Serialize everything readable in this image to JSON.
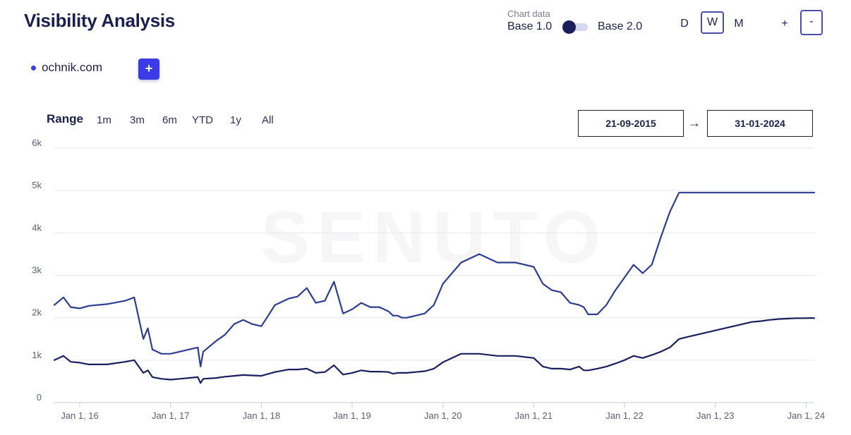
{
  "header": {
    "title": "Visibility Analysis",
    "chart_data_label": "Chart data",
    "base1_label": "Base 1.0",
    "base2_label": "Base 2.0",
    "periods": {
      "d": "D",
      "w": "W",
      "m": "M"
    },
    "selected_period": "W",
    "zoom_in": "+",
    "zoom_out": "-"
  },
  "domains": [
    {
      "name": "ochnik.com",
      "color": "#3b40e0"
    }
  ],
  "add_domain_label": "+",
  "range": {
    "label": "Range",
    "options": [
      "1m",
      "3m",
      "6m",
      "YTD",
      "1y",
      "All"
    ],
    "from": "21-09-2015",
    "to": "31-01-2024",
    "arrow": "→"
  },
  "watermark": "SENUTO",
  "colors": {
    "base1": "#2e3d8f",
    "base2": "#1b1f5e",
    "accent": "#3b3ce6"
  },
  "chart_data": {
    "type": "line",
    "title": "",
    "xlabel": "",
    "ylabel": "",
    "ylim": [
      0,
      6000
    ],
    "grid": true,
    "yticks": [
      {
        "value": 0,
        "label": "0"
      },
      {
        "value": 1000,
        "label": "1k"
      },
      {
        "value": 2000,
        "label": "2k"
      },
      {
        "value": 3000,
        "label": "3k"
      },
      {
        "value": 4000,
        "label": "4k"
      },
      {
        "value": 5000,
        "label": "5k"
      },
      {
        "value": 6000,
        "label": "6k"
      }
    ],
    "xlim": [
      2015.72,
      2024.09
    ],
    "xticks": [
      {
        "value": 2016.0,
        "label": "Jan 1, 16"
      },
      {
        "value": 2017.0,
        "label": "Jan 1, 17"
      },
      {
        "value": 2018.0,
        "label": "Jan 1, 18"
      },
      {
        "value": 2019.0,
        "label": "Jan 1, 19"
      },
      {
        "value": 2020.0,
        "label": "Jan 1, 20"
      },
      {
        "value": 2021.0,
        "label": "Jan 1, 21"
      },
      {
        "value": 2022.0,
        "label": "Jan 1, 22"
      },
      {
        "value": 2023.0,
        "label": "Jan 1, 23"
      },
      {
        "value": 2024.0,
        "label": "Jan 1, 24"
      }
    ],
    "series": [
      {
        "color": "#2e3d8f",
        "x": [
          2015.72,
          2015.82,
          2015.9,
          2016.0,
          2016.1,
          2016.3,
          2016.5,
          2016.6,
          2016.7,
          2016.75,
          2016.8,
          2016.9,
          2017.0,
          2017.1,
          2017.2,
          2017.3,
          2017.33,
          2017.36,
          2017.5,
          2017.6,
          2017.7,
          2017.8,
          2017.9,
          2018.0,
          2018.15,
          2018.3,
          2018.4,
          2018.5,
          2018.6,
          2018.7,
          2018.8,
          2018.9,
          2019.0,
          2019.1,
          2019.2,
          2019.3,
          2019.4,
          2019.45,
          2019.5,
          2019.55,
          2019.6,
          2019.7,
          2019.8,
          2019.9,
          2020.0,
          2020.2,
          2020.4,
          2020.6,
          2020.8,
          2021.0,
          2021.1,
          2021.2,
          2021.3,
          2021.4,
          2021.5,
          2021.55,
          2021.6,
          2021.7,
          2021.8,
          2021.9,
          2022.0,
          2022.1,
          2022.2,
          2022.3,
          2022.4,
          2022.5,
          2022.6,
          2022.7,
          2022.8,
          2022.9,
          2023.0,
          2023.1,
          2023.2,
          2023.3,
          2023.4,
          2023.5,
          2023.6,
          2023.65,
          2023.7,
          2023.8,
          2023.9,
          2024.0,
          2024.05,
          2024.09
        ],
        "values": [
          2300,
          2480,
          2250,
          2220,
          2280,
          2320,
          2400,
          2480,
          1500,
          1750,
          1250,
          1150,
          1150,
          1200,
          1250,
          1300,
          850,
          1200,
          1450,
          1600,
          1850,
          1950,
          1850,
          1800,
          2300,
          2450,
          2500,
          2700,
          2350,
          2400,
          2850,
          2100,
          2200,
          2350,
          2250,
          2250,
          2150,
          2050,
          2050,
          2000,
          2000,
          2050,
          2100,
          2300,
          2800,
          3300,
          3500,
          3300,
          3300,
          3200,
          2800,
          2650,
          2600,
          2350,
          2300,
          2250,
          2080,
          2080,
          2300,
          2650,
          2950,
          3250,
          3050,
          3250,
          3900,
          4500,
          4950,
          4950,
          4950,
          4950,
          4950,
          4950,
          4950,
          4950,
          4950,
          4950,
          4950,
          4950,
          4950,
          4950,
          4950,
          4950,
          4950,
          4950
        ],
        "x_note": "",
        "name": ""
      },
      {
        "color": "#1b1f5e",
        "x": [
          2015.72,
          2015.82,
          2015.9,
          2016.0,
          2016.1,
          2016.3,
          2016.5,
          2016.6,
          2016.7,
          2016.75,
          2016.8,
          2016.9,
          2017.0,
          2017.1,
          2017.2,
          2017.3,
          2017.33,
          2017.36,
          2017.5,
          2017.6,
          2017.7,
          2017.8,
          2017.9,
          2018.0,
          2018.15,
          2018.3,
          2018.4,
          2018.5,
          2018.6,
          2018.7,
          2018.8,
          2018.9,
          2019.0,
          2019.1,
          2019.2,
          2019.3,
          2019.4,
          2019.45,
          2019.5,
          2019.55,
          2019.6,
          2019.7,
          2019.8,
          2019.9,
          2020.0,
          2020.2,
          2020.4,
          2020.6,
          2020.8,
          2021.0,
          2021.1,
          2021.2,
          2021.3,
          2021.4,
          2021.5,
          2021.55,
          2021.6,
          2021.7,
          2021.8,
          2021.9,
          2022.0,
          2022.1,
          2022.2,
          2022.3,
          2022.4,
          2022.5,
          2022.6,
          2022.7,
          2022.8,
          2022.9,
          2023.0,
          2023.1,
          2023.2,
          2023.3,
          2023.4,
          2023.5,
          2023.6,
          2023.65,
          2023.7,
          2023.8,
          2023.9,
          2024.0,
          2024.05,
          2024.09
        ],
        "values": [
          1000,
          1100,
          960,
          940,
          900,
          900,
          960,
          1000,
          700,
          760,
          600,
          560,
          540,
          560,
          580,
          600,
          460,
          560,
          580,
          610,
          630,
          650,
          640,
          630,
          720,
          780,
          780,
          800,
          700,
          720,
          880,
          660,
          700,
          760,
          730,
          730,
          720,
          680,
          700,
          700,
          700,
          720,
          740,
          800,
          950,
          1150,
          1150,
          1100,
          1100,
          1050,
          850,
          800,
          800,
          780,
          850,
          760,
          760,
          800,
          850,
          920,
          1000,
          1100,
          1050,
          1120,
          1200,
          1300,
          1500,
          1550,
          1600,
          1650,
          1700,
          1750,
          1800,
          1850,
          1900,
          1920,
          1950,
          1960,
          1970,
          1980,
          1990,
          1990,
          1995,
          1990
        ],
        "x_note": "",
        "name": ""
      }
    ]
  }
}
